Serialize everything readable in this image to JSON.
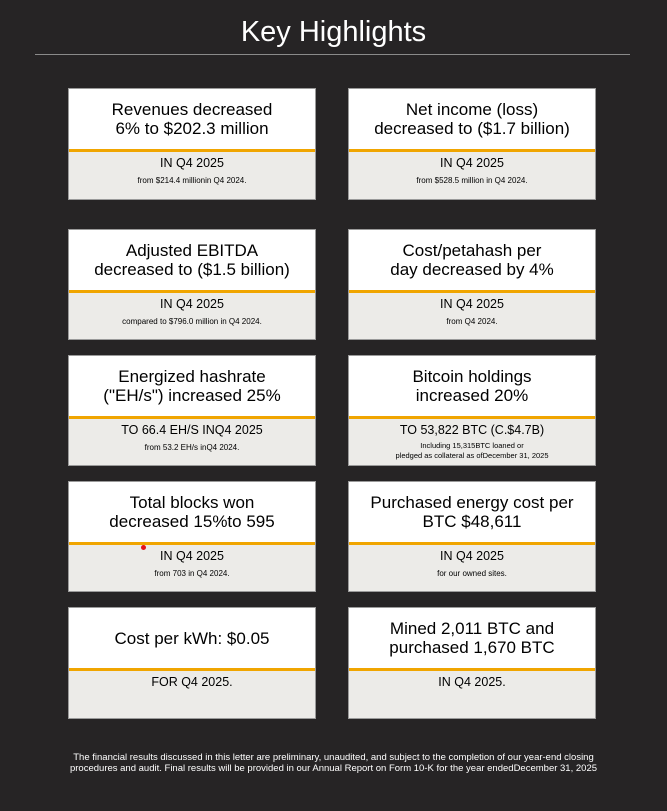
{
  "title": "Key Highlights",
  "accent_color": "#f0a500",
  "cards": [
    {
      "headline": "Revenues decreased\n6% to $202.3 million",
      "sub": "IN Q4 2025",
      "note": "from $214.4 millionin Q4 2024."
    },
    {
      "headline": "Net income (loss)\ndecreased  to ($1.7 billion)",
      "sub": "IN Q4 2025",
      "note": "from $528.5 million in Q4 2024."
    },
    {
      "headline": "Adjusted EBITDA\ndecreased  to ($1.5 billion)",
      "sub": "IN Q4 2025",
      "note": "compared to $796.0 million in Q4 2024."
    },
    {
      "headline": "Cost/petahash per\nday decreased by   4%",
      "sub": "IN Q4 2025",
      "note": "from Q4 2024."
    },
    {
      "headline": "Energized hashrate\n(\"EH/s\")  increased  25%",
      "sub": "TO 66.4 EH/S INQ4 2025",
      "note": "from 53.2 EH/s inQ4 2024."
    },
    {
      "headline": "Bitcoin holdings\nincreased  20%",
      "sub": "TO 53,822 BTC (C.$4.7B)",
      "note": "Including 15,315BTC loaned or\npledged as collateral as ofDecember 31, 2025"
    },
    {
      "headline": "Total blocks won\ndecreased  15%to 595",
      "sub": "IN Q4 2025",
      "note": "from 703 in Q4 2024."
    },
    {
      "headline": "Purchased energy cost per\nBTC $48,611",
      "sub": "IN Q4 2025",
      "note": "for our owned sites."
    },
    {
      "headline": "Cost per kWh:  $0.05",
      "sub": "FOR Q4 2025.",
      "note": ""
    },
    {
      "headline": "Mined  2,011 BTC and\npurchased   1,670 BTC",
      "sub": "IN Q4 2025.",
      "note": ""
    }
  ],
  "footer": "The financial results discussed in this letter are preliminary, unaudited, and subject to the completion of our year-end closing\nprocedures and audit. Final results will be provided in our Annual Report on Form 10-K for the year endedDecember 31, 2025"
}
